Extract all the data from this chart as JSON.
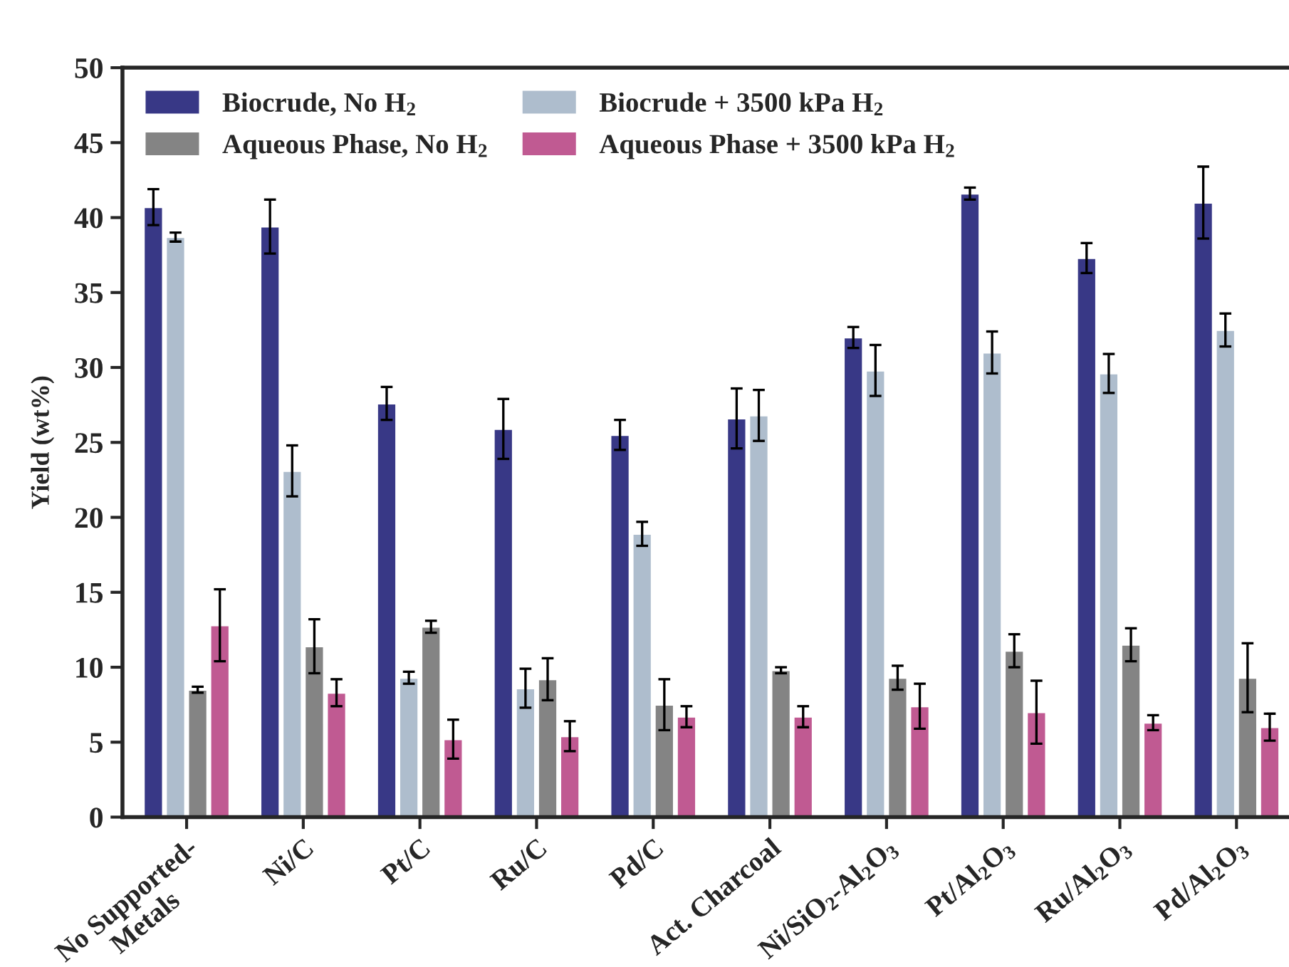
{
  "chart_data": {
    "type": "bar",
    "ylabel": "Yield (wt%)",
    "categories": [
      "No Supported-\nMetals",
      "Ni/C",
      "Pt/C",
      "Ru/C",
      "Pd/C",
      "Act. Charcoal",
      "Ni/SiO$_{2}$-Al$_{2}$O$_{3}$",
      "Pt/Al$_{2}$O$_{3}$",
      "Ru/Al$_{2}$O$_{3}$",
      "Pd/Al$_{2}$O$_{3}$"
    ],
    "series": [
      {
        "name": "Biocrude, No H$_{2}$",
        "color": "#383886",
        "values": [
          40.7,
          39.4,
          27.6,
          25.9,
          25.5,
          26.6,
          32.0,
          41.6,
          37.3,
          41.0
        ],
        "errors": [
          1.2,
          1.8,
          1.1,
          2.0,
          1.0,
          2.0,
          0.7,
          0.4,
          1.0,
          2.4
        ]
      },
      {
        "name": "Biocrude + 3500 kPa H$_{2}$",
        "color": "#aebdcd",
        "values": [
          38.7,
          23.1,
          9.3,
          8.6,
          18.9,
          26.8,
          29.8,
          31.0,
          29.6,
          32.5
        ],
        "errors": [
          0.3,
          1.7,
          0.4,
          1.3,
          0.8,
          1.7,
          1.7,
          1.4,
          1.3,
          1.1
        ]
      },
      {
        "name": "Aqueous Phase, No H$_{2}$",
        "color": "#848484",
        "values": [
          8.5,
          11.4,
          12.7,
          9.2,
          7.5,
          9.8,
          9.3,
          11.1,
          11.5,
          9.3
        ],
        "errors": [
          0.2,
          1.8,
          0.4,
          1.4,
          1.7,
          0.2,
          0.8,
          1.1,
          1.1,
          2.3
        ]
      },
      {
        "name": "Aqueous Phase + 3500 kPa H$_{2}$",
        "color": "#c05a92",
        "values": [
          12.8,
          8.3,
          5.2,
          5.4,
          6.7,
          6.7,
          7.4,
          7.0,
          6.3,
          6.0
        ],
        "errors": [
          2.4,
          0.9,
          1.3,
          1.0,
          0.7,
          0.7,
          1.5,
          2.1,
          0.5,
          0.9
        ]
      }
    ],
    "ylim": [
      0,
      50
    ],
    "yticks": [
      0,
      5,
      10,
      15,
      20,
      25,
      30,
      35,
      40,
      45,
      50
    ],
    "grid": false,
    "legend": "top left"
  }
}
